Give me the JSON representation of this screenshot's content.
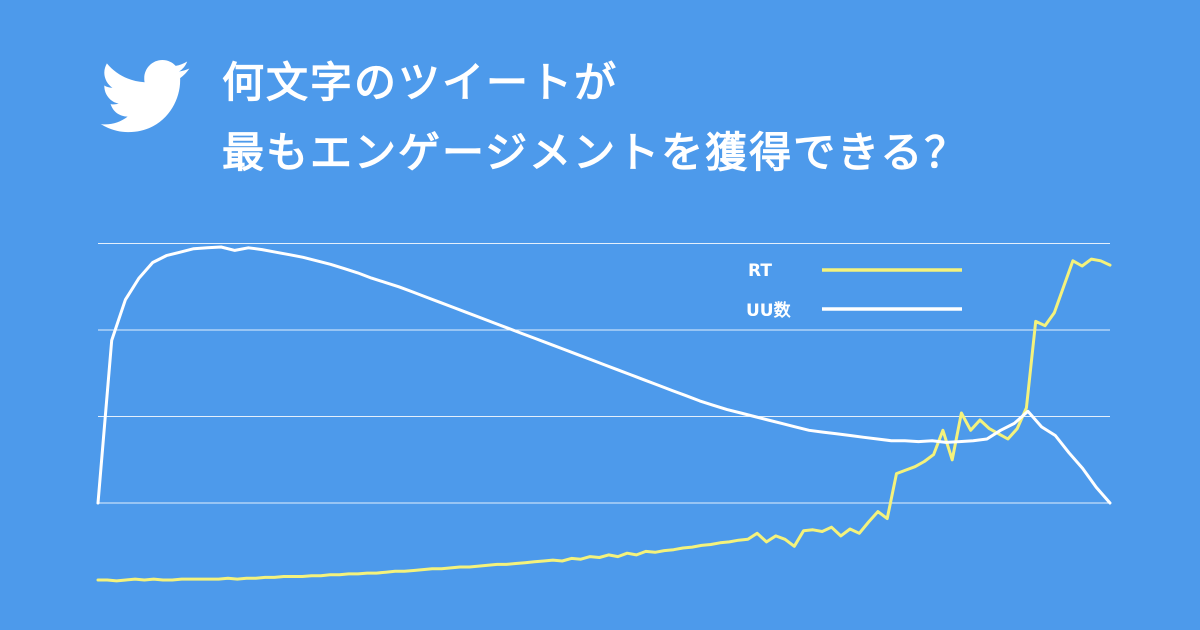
{
  "header": {
    "logo_icon": "twitter-bird-icon",
    "title_line1": "何文字のツイートが",
    "title_line2": "最もエンゲージメントを獲得できる？"
  },
  "colors": {
    "background": "#4d9aeb",
    "rt": "#f4f27c",
    "uu": "#ffffff",
    "grid": "#ffffff"
  },
  "chart_data": {
    "type": "line",
    "grid": "horizontal",
    "legend": "top-right",
    "series": [
      {
        "name": "RT",
        "color": "#f4f27c",
        "values": [
          -0.89,
          -0.89,
          -0.9,
          -0.89,
          -0.88,
          -0.89,
          -0.88,
          -0.89,
          -0.89,
          -0.88,
          -0.88,
          -0.88,
          -0.88,
          -0.88,
          -0.87,
          -0.88,
          -0.87,
          -0.87,
          -0.86,
          -0.86,
          -0.85,
          -0.85,
          -0.85,
          -0.84,
          -0.84,
          -0.83,
          -0.83,
          -0.82,
          -0.82,
          -0.81,
          -0.81,
          -0.8,
          -0.79,
          -0.79,
          -0.78,
          -0.77,
          -0.76,
          -0.76,
          -0.75,
          -0.74,
          -0.74,
          -0.73,
          -0.72,
          -0.71,
          -0.71,
          -0.7,
          -0.69,
          -0.68,
          -0.67,
          -0.66,
          -0.67,
          -0.64,
          -0.65,
          -0.62,
          -0.63,
          -0.6,
          -0.62,
          -0.58,
          -0.6,
          -0.56,
          -0.57,
          -0.55,
          -0.54,
          -0.52,
          -0.51,
          -0.49,
          -0.48,
          -0.46,
          -0.45,
          -0.43,
          -0.42,
          -0.35,
          -0.45,
          -0.38,
          -0.42,
          -0.5,
          -0.32,
          -0.31,
          -0.33,
          -0.28,
          -0.38,
          -0.3,
          -0.35,
          -0.22,
          -0.1,
          -0.18,
          0.34,
          0.38,
          0.42,
          0.48,
          0.56,
          0.84,
          0.5,
          1.04,
          0.84,
          0.96,
          0.86,
          0.8,
          0.74,
          0.86,
          1.1,
          2.1,
          2.05,
          2.2,
          2.5,
          2.8,
          2.74,
          2.82,
          2.8,
          2.75
        ]
      },
      {
        "name": "UU数",
        "color": "#ffffff",
        "values": [
          0,
          1.88,
          2.35,
          2.6,
          2.78,
          2.86,
          2.9,
          2.94,
          2.95,
          2.96,
          2.92,
          2.95,
          2.93,
          2.9,
          2.87,
          2.84,
          2.8,
          2.76,
          2.71,
          2.66,
          2.6,
          2.55,
          2.5,
          2.44,
          2.38,
          2.32,
          2.26,
          2.2,
          2.14,
          2.08,
          2.02,
          1.96,
          1.9,
          1.84,
          1.78,
          1.72,
          1.66,
          1.6,
          1.54,
          1.48,
          1.42,
          1.36,
          1.3,
          1.24,
          1.18,
          1.13,
          1.08,
          1.04,
          1.0,
          0.96,
          0.92,
          0.88,
          0.84,
          0.82,
          0.8,
          0.78,
          0.76,
          0.74,
          0.72,
          0.72,
          0.71,
          0.72,
          0.7,
          0.71,
          0.72,
          0.74,
          0.84,
          0.92,
          1.06,
          0.88,
          0.78,
          0.58,
          0.4,
          0.18,
          0.0
        ]
      }
    ]
  }
}
